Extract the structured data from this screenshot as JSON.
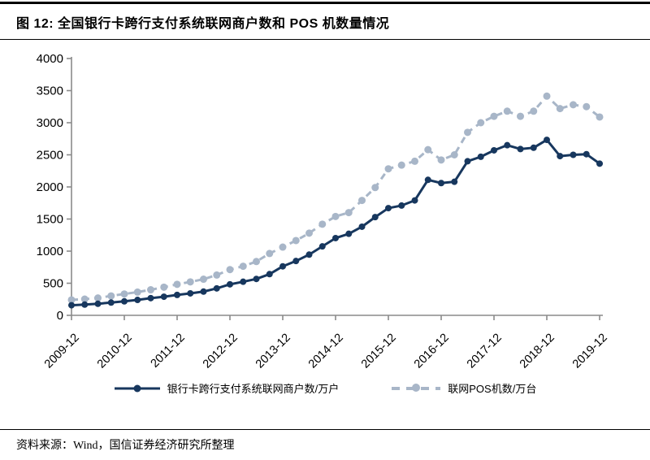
{
  "page": {
    "title": "图 12: 全国银行卡跨行支付系统联网商户数和 POS 机数量情况",
    "source": "资料来源：Wind，国信证券经济研究所整理"
  },
  "colors": {
    "merchant_line": "#17375e",
    "pos_line": "#a8b6c8",
    "axis": "#8a8a8a",
    "text": "#000000"
  },
  "chart_data": {
    "type": "line",
    "title": "",
    "xlabel": "",
    "ylabel": "",
    "ylim": [
      0,
      4000
    ],
    "y_ticks": [
      0,
      500,
      1000,
      1500,
      2000,
      2500,
      3000,
      3500,
      4000
    ],
    "x_tick_labels": [
      "2009-12",
      "2010-12",
      "2011-12",
      "2012-12",
      "2013-12",
      "2014-12",
      "2015-12",
      "2016-12",
      "2017-12",
      "2018-12",
      "2019-12"
    ],
    "x": [
      "2009-12",
      "2010-03",
      "2010-06",
      "2010-09",
      "2010-12",
      "2011-03",
      "2011-06",
      "2011-09",
      "2011-12",
      "2012-03",
      "2012-06",
      "2012-09",
      "2012-12",
      "2013-03",
      "2013-06",
      "2013-09",
      "2013-12",
      "2014-03",
      "2014-06",
      "2014-09",
      "2014-12",
      "2015-03",
      "2015-06",
      "2015-09",
      "2015-12",
      "2016-03",
      "2016-06",
      "2016-09",
      "2016-12",
      "2017-03",
      "2017-06",
      "2017-09",
      "2017-12",
      "2018-03",
      "2018-06",
      "2018-09",
      "2018-12",
      "2019-03",
      "2019-06",
      "2019-09",
      "2019-12"
    ],
    "series": [
      {
        "name": "银行卡跨行支付系统联网商户数/万户",
        "style": "solid",
        "color": "#17375e",
        "values": [
          157,
          167,
          180,
          199,
          218,
          240,
          268,
          290,
          318,
          342,
          370,
          420,
          483,
          523,
          567,
          642,
          763,
          846,
          946,
          1074,
          1203,
          1270,
          1380,
          1530,
          1670,
          1710,
          1790,
          2110,
          2060,
          2080,
          2400,
          2470,
          2570,
          2650,
          2590,
          2610,
          2733,
          2480,
          2500,
          2510,
          2363
        ]
      },
      {
        "name": "联网POS机数/万台",
        "style": "dashed",
        "color": "#a8b6c8",
        "values": [
          241,
          253,
          270,
          303,
          333,
          362,
          398,
          439,
          483,
          521,
          563,
          628,
          712,
          765,
          838,
          963,
          1063,
          1165,
          1280,
          1420,
          1540,
          1600,
          1790,
          1990,
          2282,
          2340,
          2400,
          2580,
          2420,
          2500,
          2850,
          3000,
          3100,
          3180,
          3100,
          3180,
          3414,
          3220,
          3280,
          3250,
          3089
        ]
      }
    ],
    "grid": false,
    "legend_position": "bottom"
  }
}
